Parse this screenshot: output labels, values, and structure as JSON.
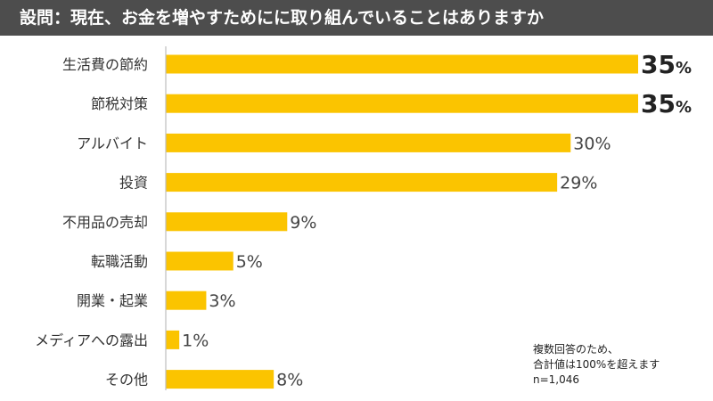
{
  "title": "設問：現在、お金を増やすためにに取り組んでいることはありますか",
  "note": {
    "line1": "複数回答のため、",
    "line2": "合計値は100%を超えます",
    "line3": "n=1,046"
  },
  "colors": {
    "bar": "#fbc400",
    "axis": "#bfbfbf",
    "title_bg": "#4d4d4d",
    "label": "#333333"
  },
  "chart_data": {
    "type": "bar",
    "orientation": "horizontal",
    "categories": [
      "生活費の節約",
      "節税対策",
      "アルバイト",
      "投資",
      "不用品の売却",
      "転職活動",
      "開業・起業",
      "メディアへの露出",
      "その他"
    ],
    "values": [
      35,
      35,
      30,
      29,
      9,
      5,
      3,
      1,
      8
    ],
    "value_labels": [
      "35%",
      "35%",
      "30%",
      "29%",
      "9%",
      "5%",
      "3%",
      "1%",
      "8%"
    ],
    "highlight": [
      true,
      true,
      false,
      false,
      false,
      false,
      false,
      false,
      false
    ],
    "xlim": [
      0,
      35
    ],
    "title": "設問：現在、お金を増やすためにに取り組んでいることはありますか",
    "xlabel": "",
    "ylabel": "",
    "grid": false
  }
}
